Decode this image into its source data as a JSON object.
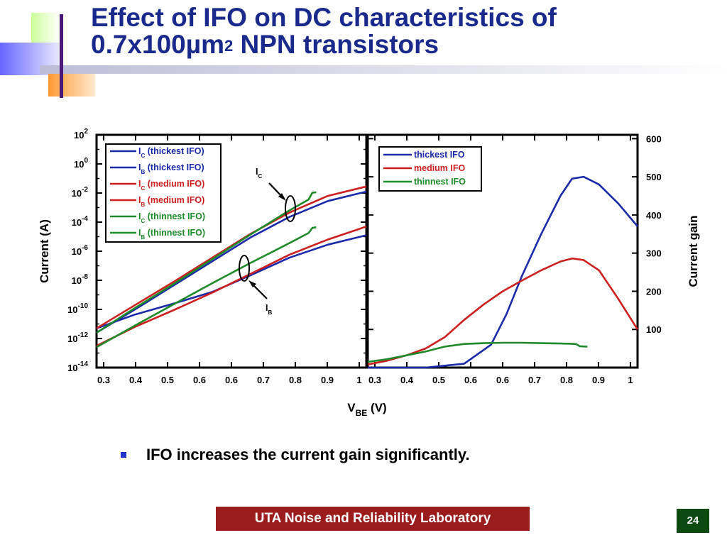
{
  "slide": {
    "title_line1": "Effect of IFO on DC characteristics of",
    "title_line2_main": "0.7x100µm",
    "title_line2_sup": "2",
    "title_line2_rest": " NPN transistors",
    "bullet": "IFO increases the current gain significantly.",
    "footer": "UTA Noise and Reliability Laboratory",
    "page_number": "24",
    "colors": {
      "title": "#1a2a8c",
      "bullet_marker": "#2233cc",
      "footer_bg": "#9b1c1c",
      "page_bg": "#0c4a12"
    }
  },
  "chart_data": [
    {
      "type": "line",
      "panel": "left",
      "log_y": true,
      "ylabel": "Current (A)",
      "y_tick_exponents": [
        2,
        0,
        -2,
        -4,
        -6,
        -8,
        -10,
        -12,
        -14
      ],
      "y_tick_base": "10",
      "x_ticks": [
        "0.3",
        "0.4",
        "0.5",
        "0.6",
        "0.6",
        "0.7",
        "0.8",
        "0.9",
        "1"
      ],
      "xlim": [
        0.3,
        1.0
      ],
      "ylim_exponent": [
        -14,
        2
      ],
      "annotations": [
        {
          "letter": "I",
          "sub": "C"
        },
        {
          "letter": "I",
          "sub": "B"
        }
      ],
      "series": [
        {
          "name_letter": "I",
          "name_sub": "C",
          "name_rest": " (thickest IFO)",
          "color": "#1a2aa8",
          "x": [
            0.3,
            0.4,
            0.5,
            0.6,
            0.7,
            0.8,
            0.9,
            1.0
          ],
          "y_exp": [
            -11.6,
            -10.0,
            -8.35,
            -6.7,
            -5.05,
            -3.65,
            -2.55,
            -1.9
          ]
        },
        {
          "name_letter": "I",
          "name_sub": "B",
          "name_rest": " (thickest IFO)",
          "color": "#1a2aa8",
          "x": [
            0.3,
            0.4,
            0.5,
            0.6,
            0.7,
            0.8,
            0.9,
            1.0
          ],
          "y_exp": [
            -11.3,
            -10.35,
            -9.6,
            -8.8,
            -7.65,
            -6.45,
            -5.55,
            -4.9
          ]
        },
        {
          "name_letter": "I",
          "name_sub": "C",
          "name_rest": " (medium IFO)",
          "color": "#cc1f1f",
          "x": [
            0.3,
            0.4,
            0.5,
            0.6,
            0.7,
            0.8,
            0.9,
            1.0
          ],
          "y_exp": [
            -11.3,
            -9.7,
            -8.1,
            -6.45,
            -4.8,
            -3.35,
            -2.2,
            -1.55
          ]
        },
        {
          "name_letter": "I",
          "name_sub": "B",
          "name_rest": " (medium IFO)",
          "color": "#cc1f1f",
          "x": [
            0.3,
            0.4,
            0.5,
            0.6,
            0.7,
            0.8,
            0.9,
            1.0
          ],
          "y_exp": [
            -12.5,
            -11.2,
            -10.05,
            -8.85,
            -7.55,
            -6.25,
            -5.2,
            -4.3
          ]
        },
        {
          "name_letter": "I",
          "name_sub": "C",
          "name_rest": " (thinnest IFO)",
          "color": "#1e8a2a",
          "x": [
            0.3,
            0.4,
            0.5,
            0.6,
            0.7,
            0.8,
            0.85,
            0.86,
            0.87
          ],
          "y_exp": [
            -11.6,
            -9.9,
            -8.25,
            -6.55,
            -4.85,
            -3.2,
            -2.45,
            -1.98,
            -1.95
          ]
        },
        {
          "name_letter": "I",
          "name_sub": "B",
          "name_rest": " (thinnest IFO)",
          "color": "#1e8a2a",
          "x": [
            0.3,
            0.4,
            0.5,
            0.6,
            0.7,
            0.8,
            0.85,
            0.86,
            0.87
          ],
          "y_exp": [
            -12.6,
            -11.1,
            -9.65,
            -8.2,
            -6.8,
            -5.45,
            -4.75,
            -4.4,
            -4.35
          ]
        }
      ]
    },
    {
      "type": "line",
      "panel": "right",
      "ylabel": "Current gain",
      "y_ticks": [
        100,
        200,
        300,
        400,
        500,
        600
      ],
      "ylim": [
        0,
        610
      ],
      "x_ticks": [
        "0.3",
        "0.4",
        "0.5",
        "0.6",
        "0.6",
        "0.7",
        "0.8",
        "0.9",
        "1"
      ],
      "xlim": [
        0.3,
        1.0
      ],
      "series": [
        {
          "name": "thickest IFO",
          "color": "#1a2aa8",
          "x": [
            0.3,
            0.45,
            0.55,
            0.62,
            0.66,
            0.7,
            0.75,
            0.8,
            0.83,
            0.86,
            0.9,
            0.95,
            1.0
          ],
          "y": [
            0,
            0,
            10,
            60,
            140,
            240,
            350,
            450,
            495,
            500,
            480,
            430,
            370
          ]
        },
        {
          "name": "medium IFO",
          "color": "#cc1f1f",
          "x": [
            0.3,
            0.35,
            0.4,
            0.45,
            0.5,
            0.55,
            0.6,
            0.65,
            0.7,
            0.75,
            0.8,
            0.83,
            0.86,
            0.9,
            0.95,
            1.0
          ],
          "y": [
            8,
            18,
            32,
            50,
            80,
            125,
            165,
            200,
            228,
            255,
            278,
            286,
            282,
            255,
            180,
            100
          ]
        },
        {
          "name": "thinnest IFO",
          "color": "#1e8a2a",
          "x": [
            0.3,
            0.35,
            0.4,
            0.45,
            0.5,
            0.55,
            0.6,
            0.65,
            0.7,
            0.75,
            0.8,
            0.84,
            0.85,
            0.87
          ],
          "y": [
            15,
            22,
            32,
            42,
            55,
            62,
            64,
            65,
            65,
            64,
            63,
            62,
            56,
            55
          ]
        }
      ]
    }
  ],
  "chart_labels": {
    "xlabel_main": "V",
    "xlabel_sub": "BE",
    "xlabel_rest": " (V)"
  }
}
